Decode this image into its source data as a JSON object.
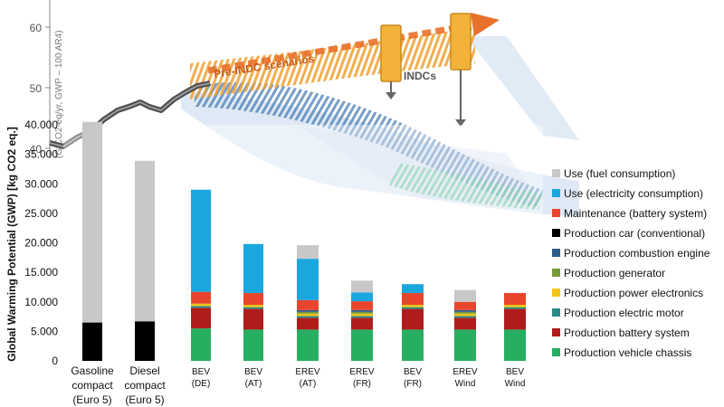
{
  "background_figure": {
    "y_ticks": [
      "60",
      "50",
      "40"
    ],
    "y_values": [
      60,
      50,
      40
    ],
    "label_pre_indc": "Pre-INDC scenarios",
    "label_indcs": "INDCs",
    "y_axis_label": "(GtCO2-eq/yr, GWP – 100 AR4)",
    "colors": {
      "history": "#555555",
      "pre_indc": "#f0a030",
      "arrow": "#e8712a",
      "indc": "#4a7fb5",
      "band": "#b9cfe8",
      "green": "#3cb878"
    }
  },
  "chart_data": {
    "type": "bar",
    "stacked": true,
    "ylabel": "Global Warming Potential (GWP) [kg CO2 eq.]",
    "ylim": [
      0,
      40000
    ],
    "y_ticks": [
      0,
      5000,
      10000,
      15000,
      20000,
      25000,
      30000,
      35000,
      40000
    ],
    "y_tick_labels": [
      "0",
      "5.000",
      "10.000",
      "15.000",
      "20.000",
      "25.000",
      "30.000",
      "35.000",
      "40.000"
    ],
    "categories": [
      [
        "Gasoline",
        "compact",
        "(Euro 5)"
      ],
      [
        "Diesel",
        "compact",
        "(Euro 5)"
      ],
      [
        "BEV",
        "(DE)"
      ],
      [
        "BEV",
        "(AT)"
      ],
      [
        "EREV",
        "(AT)"
      ],
      [
        "EREV",
        "(FR)"
      ],
      [
        "BEV",
        "(FR)"
      ],
      [
        "EREV",
        "Wind"
      ],
      [
        "BEV",
        "Wind"
      ]
    ],
    "legend_position": "right",
    "series": [
      {
        "name": "Production vehicle chassis",
        "color": "#27ae60",
        "values": [
          0,
          0,
          5500,
          5300,
          5300,
          5300,
          5300,
          5300,
          5300
        ]
      },
      {
        "name": "Production battery system",
        "color": "#b01c1c",
        "values": [
          0,
          0,
          3500,
          3500,
          2000,
          2000,
          3500,
          2000,
          3500
        ]
      },
      {
        "name": "Production electric motor",
        "color": "#2a8a8a",
        "values": [
          0,
          0,
          300,
          300,
          300,
          300,
          300,
          300,
          300
        ]
      },
      {
        "name": "Production power electronics",
        "color": "#f0c419",
        "values": [
          0,
          0,
          400,
          400,
          400,
          400,
          400,
          400,
          400
        ]
      },
      {
        "name": "Production generator",
        "color": "#7a9a3a",
        "values": [
          0,
          0,
          0,
          0,
          300,
          300,
          0,
          300,
          0
        ]
      },
      {
        "name": "Production combustion engine",
        "color": "#2c5d8a",
        "values": [
          0,
          0,
          0,
          0,
          300,
          300,
          0,
          300,
          0
        ]
      },
      {
        "name": "Production car (conventional)",
        "color": "#000000",
        "values": [
          6500,
          6700,
          0,
          0,
          0,
          0,
          0,
          0,
          0
        ]
      },
      {
        "name": "Maintenance (battery system)",
        "color": "#e8452c",
        "values": [
          0,
          0,
          2000,
          2000,
          1700,
          1500,
          2000,
          1400,
          2000
        ]
      },
      {
        "name": "Use (electricity consumption)",
        "color": "#1aa7e0",
        "values": [
          0,
          0,
          17300,
          8300,
          7000,
          1500,
          1500,
          0,
          0
        ]
      },
      {
        "name": "Use (fuel consumption)",
        "color": "#c8c8c8",
        "values": [
          34000,
          27200,
          0,
          0,
          2300,
          2000,
          0,
          2000,
          0
        ]
      }
    ]
  }
}
